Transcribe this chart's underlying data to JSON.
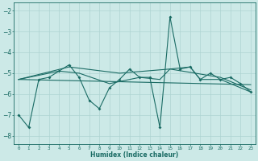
{
  "xlabel": "Humidex (Indice chaleur)",
  "ylabel": "",
  "bg_color": "#cce9e7",
  "grid_color": "#aed4d2",
  "line_color": "#1a6b64",
  "xlim": [
    -0.5,
    23.5
  ],
  "ylim": [
    -8.4,
    -1.6
  ],
  "yticks": [
    -8,
    -7,
    -6,
    -5,
    -4,
    -3,
    -2
  ],
  "xticks": [
    0,
    1,
    2,
    3,
    4,
    5,
    6,
    7,
    8,
    9,
    10,
    11,
    12,
    13,
    14,
    15,
    16,
    17,
    18,
    19,
    20,
    21,
    22,
    23
  ],
  "series1": [
    [
      0,
      -7.0
    ],
    [
      1,
      -7.6
    ],
    [
      2,
      -5.3
    ],
    [
      3,
      -5.2
    ],
    [
      4,
      -4.9
    ],
    [
      5,
      -4.6
    ],
    [
      6,
      -5.2
    ],
    [
      7,
      -6.3
    ],
    [
      8,
      -6.7
    ],
    [
      9,
      -5.7
    ],
    [
      10,
      -5.3
    ],
    [
      11,
      -4.8
    ],
    [
      12,
      -5.2
    ],
    [
      13,
      -5.2
    ],
    [
      14,
      -7.6
    ],
    [
      15,
      -2.3
    ],
    [
      16,
      -4.8
    ],
    [
      17,
      -4.7
    ],
    [
      18,
      -5.3
    ],
    [
      19,
      -5.0
    ],
    [
      20,
      -5.3
    ],
    [
      21,
      -5.2
    ],
    [
      22,
      -5.5
    ],
    [
      23,
      -5.9
    ]
  ],
  "series2": [
    [
      0,
      -5.3
    ],
    [
      5,
      -4.7
    ],
    [
      10,
      -5.0
    ],
    [
      15,
      -4.8
    ],
    [
      20,
      -5.2
    ],
    [
      23,
      -5.8
    ]
  ],
  "series3": [
    [
      0,
      -5.3
    ],
    [
      4,
      -4.9
    ],
    [
      6,
      -5.0
    ],
    [
      9,
      -5.5
    ],
    [
      12,
      -5.2
    ],
    [
      14,
      -5.3
    ],
    [
      15,
      -4.8
    ],
    [
      17,
      -4.7
    ],
    [
      18,
      -5.3
    ],
    [
      20,
      -5.3
    ],
    [
      23,
      -5.9
    ]
  ],
  "series4": [
    [
      0,
      -5.3
    ],
    [
      23,
      -5.55
    ]
  ]
}
